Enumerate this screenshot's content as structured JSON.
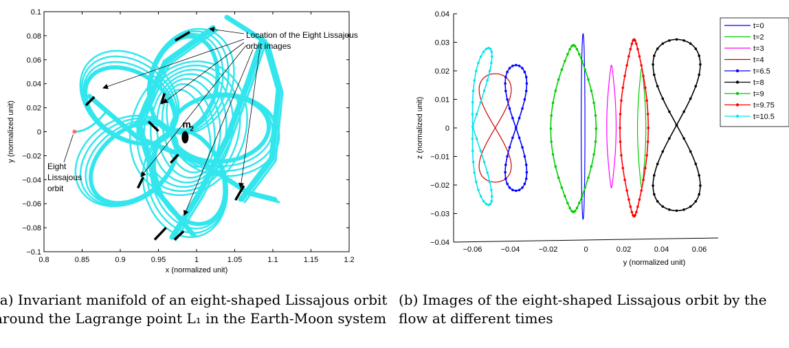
{
  "figure": {
    "panel_a": {
      "caption": "(a) Invariant manifold of an eight-shaped Lissajous orbit around the Lagrange point L₁ in the Earth-Moon system"
    },
    "panel_b": {
      "caption": "(b) Images of the eight-shaped Lissajous orbit by the flow at different times"
    }
  },
  "chart_data": [
    {
      "type": "line",
      "xlabel": "x (normalized unit)",
      "ylabel": "y (normalized unit)",
      "xlim": [
        0.8,
        1.2
      ],
      "ylim": [
        -0.1,
        0.1
      ],
      "xticks": [
        "0.8",
        "0.85",
        "0.9",
        "0.95",
        "1",
        "1.05",
        "1.1",
        "1.15",
        "1.2"
      ],
      "yticks": [
        "−0.1",
        "−0.08",
        "−0.06",
        "−0.04",
        "−0.02",
        "0",
        "0.02",
        "0.04",
        "0.06",
        "0.08",
        "0.1"
      ],
      "box": true,
      "grid": false,
      "manifold_color": "#33e6ee",
      "primary": {
        "label": "m2",
        "x": 0.985,
        "y": 0.0
      },
      "orbit_label": "Eight Lissajous orbit",
      "orbit_point": {
        "x": 0.84,
        "y": 0.0
      },
      "annotation": "Location of the Eight Lissajous orbit images",
      "image_segments": [
        {
          "x1": 0.972,
          "y1": 0.076,
          "x2": 0.991,
          "y2": 0.083
        },
        {
          "x1": 0.855,
          "y1": 0.022,
          "x2": 0.866,
          "y2": 0.029
        },
        {
          "x1": 0.954,
          "y1": 0.023,
          "x2": 0.958,
          "y2": 0.032
        },
        {
          "x1": 0.937,
          "y1": 0.0085,
          "x2": 0.95,
          "y2": 0.0005
        },
        {
          "x1": 0.966,
          "y1": -0.026,
          "x2": 0.976,
          "y2": -0.019
        },
        {
          "x1": 0.923,
          "y1": -0.047,
          "x2": 0.93,
          "y2": -0.038
        },
        {
          "x1": 1.051,
          "y1": -0.057,
          "x2": 1.062,
          "y2": -0.045
        },
        {
          "x1": 0.945,
          "y1": -0.09,
          "x2": 0.96,
          "y2": -0.08
        },
        {
          "x1": 0.971,
          "y1": -0.09,
          "x2": 0.983,
          "y2": -0.083
        }
      ]
    },
    {
      "type": "line",
      "xlabel": "y (normalized unit)",
      "ylabel": "z (normalized unit)",
      "xlim": [
        -0.07,
        0.07
      ],
      "ylim": [
        -0.04,
        0.04
      ],
      "xticks": [
        "−0.06",
        "−0.04",
        "−0.02",
        "0",
        "0.02",
        "0.04",
        "0.06"
      ],
      "yticks": [
        "−0.04",
        "−0.03",
        "−0.02",
        "−0.01",
        "0",
        "0.01",
        "0.02",
        "0.03",
        "0.04"
      ],
      "legend_position": "top-right",
      "series": [
        {
          "name": "t=0",
          "color": "#0000ff",
          "marker": false,
          "shape": "line",
          "cx": -0.0015,
          "top": 0.033,
          "bottom": -0.032,
          "w": 0.001
        },
        {
          "name": "t=2",
          "color": "#00cc00",
          "marker": false,
          "shape": "crescent",
          "cx": 0.0295,
          "top": 0.021,
          "bottom": -0.021,
          "w": 0.0022
        },
        {
          "name": "t=3",
          "color": "#ff00ff",
          "marker": false,
          "shape": "crescent",
          "cx": 0.0135,
          "top": 0.022,
          "bottom": -0.021,
          "w": 0.0025
        },
        {
          "name": "t=4",
          "color": "#cc0000",
          "marker": false,
          "shape": "eight",
          "cx": -0.048,
          "top": 0.019,
          "bottom": -0.019,
          "w": 0.0085
        },
        {
          "name": "t=6.5",
          "color": "#0000ff",
          "marker": true,
          "shape": "eight",
          "cx": -0.037,
          "top": 0.022,
          "bottom": -0.022,
          "w": 0.0057
        },
        {
          "name": "t=8",
          "color": "#000000",
          "marker": true,
          "shape": "eight",
          "cx": 0.048,
          "top": 0.031,
          "bottom": -0.029,
          "w": 0.0125
        },
        {
          "name": "t=9",
          "color": "#00cc00",
          "marker": true,
          "shape": "crescent",
          "cx": -0.0066,
          "top": 0.029,
          "bottom": -0.0295,
          "w": 0.012
        },
        {
          "name": "t=9.75",
          "color": "#ff0000",
          "marker": true,
          "shape": "crescent",
          "cx": 0.0255,
          "top": 0.031,
          "bottom": -0.031,
          "w": 0.0075
        },
        {
          "name": "t=10.5",
          "color": "#00e5ee",
          "marker": true,
          "shape": "crescentL",
          "cx": -0.0515,
          "top": 0.028,
          "bottom": -0.027,
          "w": 0.012
        }
      ]
    }
  ]
}
